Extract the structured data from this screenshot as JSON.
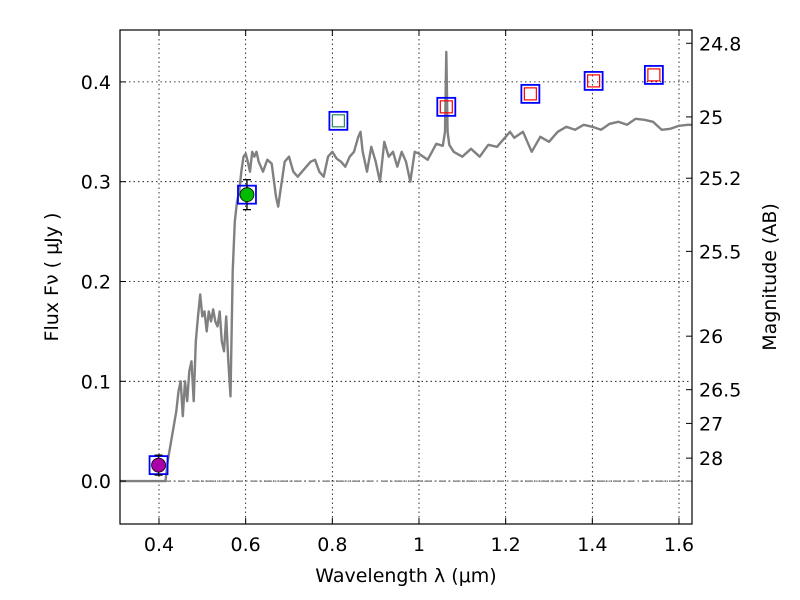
{
  "chart_data": {
    "type": "scatter",
    "title": "",
    "xlabel": "Wavelength  λ (μm)",
    "ylabel": "Flux  Fν  ( μJy )",
    "y2label": "Magnitude (AB)",
    "xlim": [
      0.31,
      1.63
    ],
    "ylim": [
      -0.043,
      0.452
    ],
    "xticks": [
      {
        "value": 0.4,
        "label": "0.4"
      },
      {
        "value": 0.6,
        "label": "0.6"
      },
      {
        "value": 0.8,
        "label": "0.8"
      },
      {
        "value": 1.0,
        "label": "1"
      },
      {
        "value": 1.2,
        "label": "1.2"
      },
      {
        "value": 1.4,
        "label": "1.4"
      },
      {
        "value": 1.6,
        "label": "1.6"
      }
    ],
    "yticks": [
      {
        "value": 0.0,
        "label": "0.0"
      },
      {
        "value": 0.1,
        "label": "0.1"
      },
      {
        "value": 0.2,
        "label": "0.2"
      },
      {
        "value": 0.3,
        "label": "0.3"
      },
      {
        "value": 0.4,
        "label": "0.4"
      }
    ],
    "y2ticks": [
      {
        "label": "24.8",
        "flux": 0.4387
      },
      {
        "label": "25",
        "flux": 0.3649
      },
      {
        "label": "25.2",
        "flux": 0.3035
      },
      {
        "label": "25.5",
        "flux": 0.2302
      },
      {
        "label": "26",
        "flux": 0.1452
      },
      {
        "label": "26.5",
        "flux": 0.0916
      },
      {
        "label": "27",
        "flux": 0.0578
      },
      {
        "label": "28",
        "flux": 0.023
      }
    ],
    "grid": true,
    "zero_line": true,
    "colors": {
      "sed": "#808080",
      "box": "#0000ff",
      "inner_box": "#ff0000",
      "inner_green_box": "#2e8b57",
      "detection_green": "#00bb00",
      "detection_magenta": "#aa00aa",
      "zero_line": "#555555"
    },
    "series": [
      {
        "name": "model SED",
        "type": "line",
        "x": [
          0.3,
          0.32,
          0.34,
          0.36,
          0.38,
          0.4,
          0.415,
          0.42,
          0.43,
          0.44,
          0.445,
          0.45,
          0.455,
          0.46,
          0.465,
          0.47,
          0.475,
          0.48,
          0.485,
          0.49,
          0.495,
          0.5,
          0.505,
          0.51,
          0.515,
          0.52,
          0.525,
          0.53,
          0.535,
          0.54,
          0.545,
          0.55,
          0.555,
          0.56,
          0.565,
          0.57,
          0.575,
          0.58,
          0.585,
          0.59,
          0.595,
          0.6,
          0.605,
          0.61,
          0.615,
          0.62,
          0.625,
          0.63,
          0.64,
          0.65,
          0.66,
          0.67,
          0.675,
          0.68,
          0.69,
          0.7,
          0.71,
          0.72,
          0.73,
          0.74,
          0.75,
          0.76,
          0.77,
          0.78,
          0.79,
          0.8,
          0.81,
          0.82,
          0.83,
          0.84,
          0.85,
          0.86,
          0.865,
          0.87,
          0.88,
          0.89,
          0.9,
          0.91,
          0.92,
          0.93,
          0.94,
          0.95,
          0.96,
          0.97,
          0.98,
          0.99,
          1.0,
          1.02,
          1.04,
          1.055,
          1.06,
          1.063,
          1.066,
          1.07,
          1.08,
          1.1,
          1.12,
          1.14,
          1.16,
          1.18,
          1.19,
          1.2,
          1.21,
          1.22,
          1.24,
          1.26,
          1.28,
          1.3,
          1.32,
          1.34,
          1.36,
          1.38,
          1.4,
          1.42,
          1.44,
          1.46,
          1.48,
          1.5,
          1.52,
          1.54,
          1.56,
          1.58,
          1.6,
          1.62,
          1.63
        ],
        "y": [
          0.0,
          0.0,
          0.0,
          0.0,
          0.0,
          0.0,
          0.0,
          0.02,
          0.045,
          0.07,
          0.09,
          0.1,
          0.065,
          0.1,
          0.08,
          0.11,
          0.12,
          0.08,
          0.14,
          0.165,
          0.187,
          0.165,
          0.17,
          0.15,
          0.17,
          0.16,
          0.172,
          0.16,
          0.155,
          0.17,
          0.14,
          0.13,
          0.165,
          0.12,
          0.085,
          0.21,
          0.26,
          0.28,
          0.29,
          0.31,
          0.325,
          0.328,
          0.32,
          0.31,
          0.33,
          0.325,
          0.33,
          0.32,
          0.31,
          0.322,
          0.318,
          0.285,
          0.275,
          0.29,
          0.32,
          0.325,
          0.31,
          0.305,
          0.31,
          0.315,
          0.32,
          0.322,
          0.31,
          0.305,
          0.325,
          0.33,
          0.323,
          0.32,
          0.315,
          0.325,
          0.33,
          0.345,
          0.35,
          0.33,
          0.31,
          0.335,
          0.32,
          0.3,
          0.34,
          0.325,
          0.33,
          0.315,
          0.33,
          0.32,
          0.3,
          0.33,
          0.328,
          0.322,
          0.338,
          0.336,
          0.35,
          0.43,
          0.35,
          0.337,
          0.33,
          0.325,
          0.333,
          0.325,
          0.337,
          0.335,
          0.34,
          0.345,
          0.35,
          0.344,
          0.35,
          0.33,
          0.345,
          0.34,
          0.35,
          0.355,
          0.352,
          0.357,
          0.355,
          0.352,
          0.358,
          0.36,
          0.357,
          0.363,
          0.362,
          0.36,
          0.352,
          0.353,
          0.356,
          0.357,
          0.357
        ]
      },
      {
        "name": "photometry boxes",
        "type": "open-square",
        "points": [
          {
            "x": 0.399,
            "y": 0.016,
            "inner": "none"
          },
          {
            "x": 0.603,
            "y": 0.287,
            "inner": "none"
          },
          {
            "x": 0.814,
            "y": 0.361,
            "inner": "green"
          },
          {
            "x": 1.063,
            "y": 0.375,
            "inner": "red"
          },
          {
            "x": 1.257,
            "y": 0.388,
            "inner": "red"
          },
          {
            "x": 1.403,
            "y": 0.401,
            "inner": "red"
          },
          {
            "x": 1.542,
            "y": 0.407,
            "inner": "red"
          }
        ]
      },
      {
        "name": "detections",
        "type": "filled-circle",
        "points": [
          {
            "x": 0.399,
            "y": 0.016,
            "yerr": 0.01,
            "color": "magenta"
          },
          {
            "x": 0.603,
            "y": 0.287,
            "yerr": 0.015,
            "color": "green"
          }
        ]
      }
    ]
  }
}
